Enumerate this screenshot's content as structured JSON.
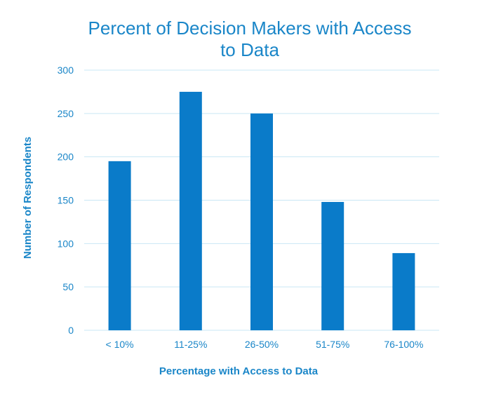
{
  "chart_data": {
    "type": "bar",
    "title_lines": [
      "Percent of Decision Makers with Access",
      "to Data"
    ],
    "xlabel": "Percentage with Access to Data",
    "ylabel": "Number of Respondents",
    "categories": [
      "< 10%",
      "11-25%",
      "26-50%",
      "51-75%",
      "76-100%"
    ],
    "values": [
      195,
      275,
      250,
      148,
      89
    ],
    "ylim": [
      0,
      300
    ],
    "yticks": [
      0,
      50,
      100,
      150,
      200,
      250,
      300
    ],
    "grid": true,
    "legend": "none",
    "colors": {
      "bar": "#0a7bc9",
      "text": "#1a86c8",
      "grid": "#c9e7f4"
    }
  }
}
